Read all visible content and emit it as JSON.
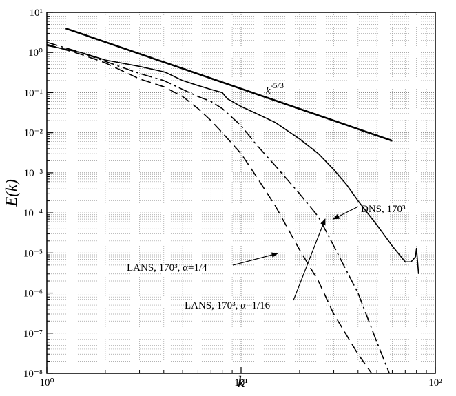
{
  "chart_data": {
    "type": "line",
    "xlabel": "k",
    "ylabel": "E(k)",
    "xscale": "log",
    "yscale": "log",
    "grid": true,
    "xlim": [
      1,
      100
    ],
    "ylim": [
      1e-08,
      10
    ],
    "xticks": [
      {
        "value": 1,
        "label": "10⁰"
      },
      {
        "value": 10,
        "label": "10¹"
      },
      {
        "value": 100,
        "label": "10²"
      }
    ],
    "yticks": [
      {
        "value": 1e-08,
        "label": "10⁻⁸"
      },
      {
        "value": 1e-07,
        "label": "10⁻⁷"
      },
      {
        "value": 1e-06,
        "label": "10⁻⁶"
      },
      {
        "value": 1e-05,
        "label": "10⁻⁵"
      },
      {
        "value": 0.0001,
        "label": "10⁻⁴"
      },
      {
        "value": 0.001,
        "label": "10⁻³"
      },
      {
        "value": 0.01,
        "label": "10⁻²"
      },
      {
        "value": 0.1,
        "label": "10⁻¹"
      },
      {
        "value": 1,
        "label": "10⁰"
      },
      {
        "value": 10,
        "label": "10¹"
      }
    ],
    "series": [
      {
        "name": "DNS, 170³",
        "color": "#000000",
        "dash": "solid",
        "width": 1.6,
        "x": [
          1,
          1.5,
          2,
          3,
          4,
          4.2,
          5,
          6,
          7,
          8,
          8.5,
          10,
          12,
          15,
          20,
          25,
          30,
          35,
          40,
          50,
          60,
          70,
          75,
          79,
          80,
          82
        ],
        "values": [
          1.5,
          1.0,
          0.65,
          0.45,
          0.33,
          0.3,
          0.2,
          0.15,
          0.12,
          0.1,
          0.07,
          0.045,
          0.03,
          0.018,
          0.007,
          0.003,
          0.0012,
          0.0005,
          0.0002,
          5e-05,
          1.5e-05,
          6e-06,
          6e-06,
          8e-06,
          1.3e-05,
          3e-06
        ]
      },
      {
        "name": "LANS, 170³, α=1/4",
        "color": "#000000",
        "dash": "dashed",
        "width": 1.6,
        "x": [
          1,
          1.5,
          2,
          3,
          4,
          5,
          6,
          7,
          8,
          10,
          12,
          15,
          20,
          25,
          30,
          40,
          47
        ],
        "values": [
          1.6,
          0.9,
          0.55,
          0.22,
          0.14,
          0.08,
          0.04,
          0.02,
          0.01,
          0.003,
          0.0008,
          0.00015,
          1.2e-05,
          2e-06,
          3e-07,
          3e-08,
          1e-08
        ]
      },
      {
        "name": "LANS, 170³, α=1/16",
        "color": "#000000",
        "dash": "dashdot",
        "width": 1.6,
        "x": [
          1,
          1.5,
          2,
          3,
          4,
          5,
          6,
          7,
          8,
          10,
          12,
          15,
          20,
          25,
          30,
          40,
          50,
          58
        ],
        "values": [
          1.8,
          1.0,
          0.6,
          0.3,
          0.2,
          0.12,
          0.08,
          0.06,
          0.04,
          0.015,
          0.005,
          0.0015,
          0.0003,
          8e-05,
          1.5e-05,
          1e-06,
          6e-08,
          1e-08
        ]
      },
      {
        "name": "k",
        "name_superscript": "-5/3",
        "color": "#000000",
        "dash": "solid",
        "width": 2.6,
        "x": [
          1.25,
          60
        ],
        "values": [
          4,
          0.0063
        ]
      }
    ]
  }
}
